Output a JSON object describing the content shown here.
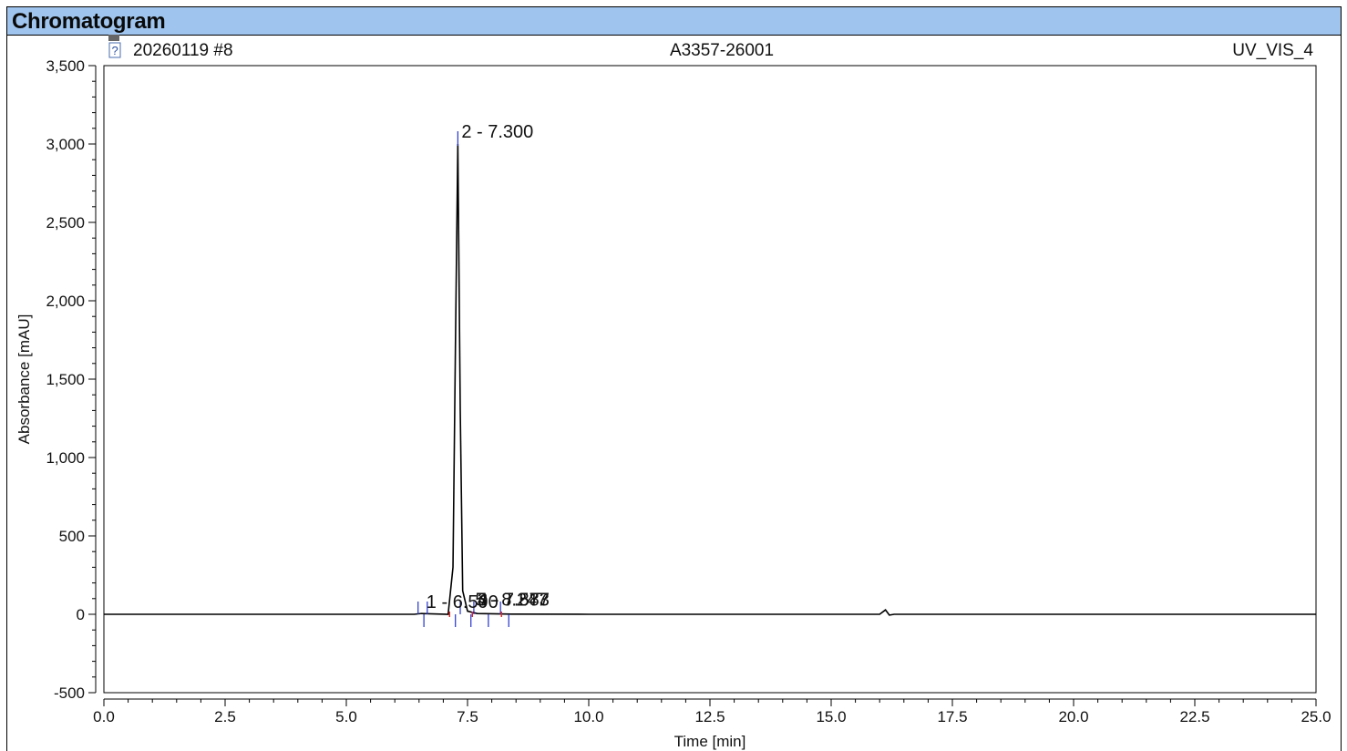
{
  "section_title": "Chromatogram",
  "header": {
    "sample": "20260119 #8",
    "sample_name": "A3357-26001",
    "channel": "UV_VIS_4"
  },
  "chart_data": {
    "type": "line",
    "xlabel": "Time [min]",
    "ylabel": "Absorbance [mAU]",
    "xlim": [
      0,
      25
    ],
    "ylim": [
      -500,
      3500
    ],
    "x_ticks": [
      0,
      2.5,
      5,
      7.5,
      10,
      12.5,
      15,
      17.5,
      20,
      22.5,
      25
    ],
    "x_tick_labels": [
      "0.0",
      "2.5",
      "5.0",
      "7.5",
      "10.0",
      "12.5",
      "15.0",
      "17.5",
      "20.0",
      "22.5",
      "25.0"
    ],
    "y_ticks": [
      -500,
      0,
      500,
      1000,
      1500,
      2000,
      2500,
      3000,
      3500
    ],
    "y_tick_labels": [
      "-500",
      "0",
      "500",
      "1,000",
      "1,500",
      "2,000",
      "2,500",
      "3,000",
      "3,500"
    ],
    "grid": false,
    "series": [
      {
        "color": "#000000",
        "x": [
          0,
          5,
          6.4,
          6.55,
          7.1,
          7.2,
          7.25,
          7.3,
          7.35,
          7.4,
          7.5,
          7.7,
          8.0,
          8.4,
          10,
          15,
          16.0,
          16.12,
          16.2,
          16.3,
          17,
          25
        ],
        "y": [
          0,
          0,
          0,
          5,
          0,
          300,
          1700,
          3000,
          1300,
          150,
          20,
          5,
          3,
          1,
          0,
          0,
          0,
          28,
          -5,
          0,
          0,
          0
        ]
      }
    ],
    "peaks": [
      {
        "number": 1,
        "rt": 6.5,
        "label": "1 - 6.590"
      },
      {
        "number": 2,
        "rt": 7.3,
        "label": "2 - 7.300"
      },
      {
        "number": 3,
        "rt": 7.6,
        "label": "3 - 7.583"
      },
      {
        "number": 4,
        "rt": 7.65,
        "label": "4 - 7.877"
      },
      {
        "number": 5,
        "rt": 8.2,
        "label": "5 - 8.247"
      }
    ],
    "baseline_marks_blue": [
      6.48,
      6.6,
      6.67,
      7.25,
      7.35,
      7.57,
      7.63,
      7.93,
      8.18,
      8.35
    ],
    "baseline_marks_red": [
      7.13,
      7.6,
      8.2
    ]
  }
}
